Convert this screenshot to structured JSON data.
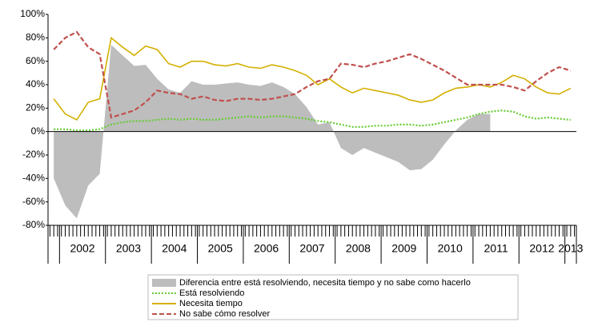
{
  "chart_data": {
    "type": "line",
    "categories": [
      null,
      "2002",
      null,
      null,
      null,
      "2003",
      null,
      null,
      null,
      "2004",
      null,
      null,
      null,
      "2005",
      null,
      null,
      null,
      "2006",
      null,
      null,
      null,
      "2007",
      null,
      null,
      null,
      "2008",
      null,
      null,
      null,
      "2009",
      null,
      null,
      null,
      "2010",
      null,
      null,
      null,
      "2011",
      null,
      null,
      null,
      "2012",
      null,
      null,
      null,
      "2013"
    ],
    "ylim": [
      -80,
      100
    ],
    "yticks": [
      {
        "value": -80,
        "label": "-80%"
      },
      {
        "value": -60,
        "label": "-60%"
      },
      {
        "value": -40,
        "label": "-40%"
      },
      {
        "value": -20,
        "label": "-20%"
      },
      {
        "value": 0,
        "label": "0%"
      },
      {
        "value": 20,
        "label": "20%"
      },
      {
        "value": 40,
        "label": "40%"
      },
      {
        "value": 60,
        "label": "60%"
      },
      {
        "value": 80,
        "label": "80%"
      },
      {
        "value": 100,
        "label": "100%"
      }
    ],
    "grid": false,
    "legend": "bottom",
    "series": [
      {
        "name": "Diferencia entre está resolviendo, necesita tiempo y no sabe como hacerlo",
        "type": "area",
        "color": "#bdbdbd",
        "values": [
          -40,
          -63,
          -74,
          -46,
          -36,
          74,
          65,
          56,
          57,
          45,
          36,
          33,
          43,
          40,
          40,
          41,
          42,
          40,
          39,
          42,
          38,
          32,
          21,
          6,
          8,
          -14,
          -20,
          -14,
          -18,
          -22,
          -26,
          -33,
          -32,
          -24,
          -11,
          1,
          10,
          15,
          15,
          null,
          null,
          null,
          null,
          null,
          null,
          null
        ]
      },
      {
        "name": "Está resolviendo",
        "type": "line",
        "dash": "dotted",
        "color": "#66cc33",
        "values": [
          2,
          2,
          1,
          1,
          2,
          6,
          8,
          9,
          9,
          10,
          11,
          10,
          11,
          10,
          10,
          11,
          12,
          13,
          12,
          13,
          13,
          12,
          11,
          9,
          8,
          6,
          4,
          4,
          5,
          5,
          6,
          6,
          5,
          6,
          8,
          10,
          12,
          15,
          17,
          18,
          17,
          13,
          11,
          12,
          11,
          10
        ]
      },
      {
        "name": "Necesita tiempo",
        "type": "line",
        "dash": "solid",
        "color": "#d4b000",
        "values": [
          28,
          15,
          10,
          25,
          28,
          80,
          72,
          65,
          73,
          70,
          58,
          55,
          60,
          60,
          57,
          56,
          58,
          55,
          54,
          57,
          55,
          52,
          48,
          40,
          45,
          38,
          33,
          37,
          35,
          33,
          31,
          27,
          25,
          27,
          33,
          37,
          38,
          40,
          38,
          42,
          48,
          45,
          38,
          33,
          32,
          37
        ]
      },
      {
        "name": "No sabe cómo resolver",
        "type": "line",
        "dash": "dashed",
        "color": "#c0504d",
        "values": [
          70,
          80,
          85,
          72,
          66,
          12,
          15,
          18,
          25,
          35,
          33,
          32,
          28,
          30,
          27,
          26,
          28,
          28,
          27,
          28,
          30,
          32,
          38,
          43,
          45,
          58,
          57,
          55,
          58,
          60,
          63,
          66,
          62,
          57,
          52,
          46,
          40,
          40,
          40,
          40,
          38,
          35,
          43,
          50,
          55,
          52
        ]
      }
    ]
  }
}
